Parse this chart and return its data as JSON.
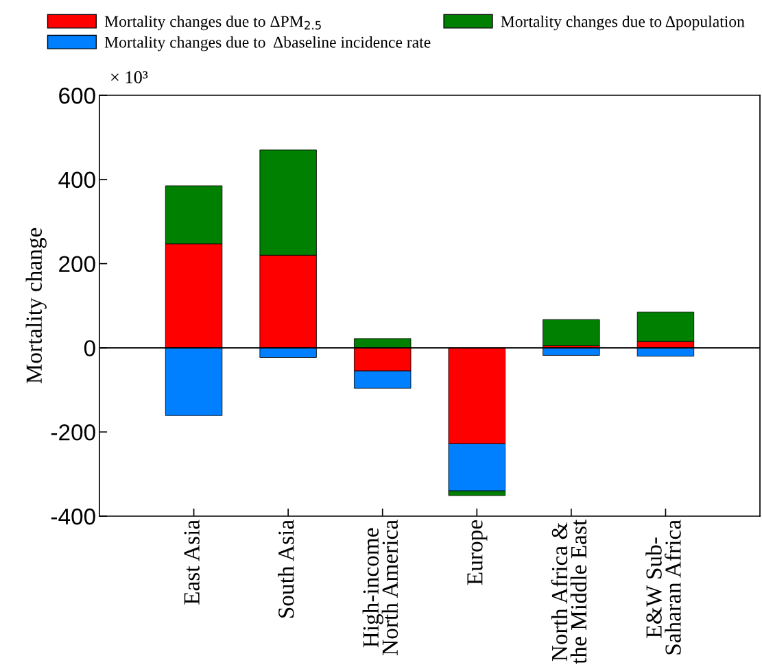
{
  "chart_data": {
    "type": "bar",
    "stacked": true,
    "ylabel": "Mortality change",
    "categories": [
      "East Asia",
      "South Asia",
      "High-income\nNorth America",
      "Europe",
      "North Africa &\nthe Middle East",
      "E&W Sub-\nSaharan Africa"
    ],
    "series": [
      {
        "name": "Mortality changes due to ΔPM$_{2.5}$",
        "color": "#ff0000",
        "values": [
          247,
          220,
          -55,
          -228,
          5,
          15
        ]
      },
      {
        "name": "Mortality changes due to  Δbaseline incidence rate",
        "color": "#0080ff",
        "values": [
          -161,
          -23,
          -41,
          -112,
          -18,
          -20
        ]
      },
      {
        "name": "Mortality changes due to Δpopulation",
        "color": "#008000",
        "values": [
          138,
          250,
          22,
          -11,
          62,
          70
        ]
      }
    ],
    "ylim": [
      -400,
      600
    ],
    "yticks": [
      -400,
      -200,
      0,
      200,
      400,
      600
    ],
    "ref_lines": [
      {
        "axis": "y",
        "value": 0,
        "color": "#000000"
      }
    ],
    "annotations": [
      "× 10³"
    ],
    "legend": "top",
    "grid": false
  }
}
